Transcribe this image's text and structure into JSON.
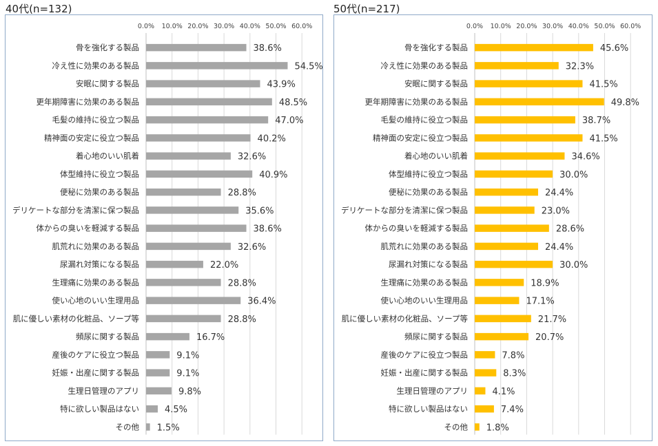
{
  "chart_data": [
    {
      "type": "bar",
      "orientation": "horizontal",
      "title": "40代(n=132)",
      "bar_color": "#a6a6a6",
      "xlim": [
        0,
        60
      ],
      "tick_labels": [
        "0.0%",
        "10.0%",
        "20.0%",
        "30.0%",
        "40.0%",
        "50.0%",
        "60.0%"
      ],
      "categories": [
        "骨を強化する製品",
        "冷え性に効果のある製品",
        "安眠に関する製品",
        "更年期障害に効果のある製品",
        "毛髪の維持に役立つ製品",
        "精神面の安定に役立つ製品",
        "着心地のいい肌着",
        "体型維持に役立つ製品",
        "便秘に効果のある製品",
        "デリケートな部分を清潔に保つ製品",
        "体からの臭いを軽減する製品",
        "肌荒れに効果のある製品",
        "尿漏れ対策になる製品",
        "生理痛に効果のある製品",
        "使い心地のいい生理用品",
        "肌に優しい素材の化粧品、ソープ等",
        "頻尿に関する製品",
        "産後のケアに役立つ製品",
        "妊娠・出産に関する製品",
        "生理日管理のアプリ",
        "特に欲しい製品はない",
        "その他"
      ],
      "values": [
        38.6,
        54.5,
        43.9,
        48.5,
        47.0,
        40.2,
        32.6,
        40.9,
        28.8,
        35.6,
        38.6,
        32.6,
        22.0,
        28.8,
        36.4,
        28.8,
        16.7,
        9.1,
        9.1,
        9.8,
        4.5,
        1.5
      ],
      "value_labels": [
        "38.6%",
        "54.5%",
        "43.9%",
        "48.5%",
        "47.0%",
        "40.2%",
        "32.6%",
        "40.9%",
        "28.8%",
        "35.6%",
        "38.6%",
        "32.6%",
        "22.0%",
        "28.8%",
        "36.4%",
        "28.8%",
        "16.7%",
        "9.1%",
        "9.1%",
        "9.8%",
        "4.5%",
        "1.5%"
      ]
    },
    {
      "type": "bar",
      "orientation": "horizontal",
      "title": "50代(n=217)",
      "bar_color": "#ffc000",
      "xlim": [
        0,
        60
      ],
      "tick_labels": [
        "0.0%",
        "10.0%",
        "20.0%",
        "30.0%",
        "40.0%",
        "50.0%",
        "60.0%"
      ],
      "categories": [
        "骨を強化する製品",
        "冷え性に効果のある製品",
        "安眠に関する製品",
        "更年期障害に効果のある製品",
        "毛髪の維持に役立つ製品",
        "精神面の安定に役立つ製品",
        "着心地のいい肌着",
        "体型維持に役立つ製品",
        "便秘に効果のある製品",
        "デリケートな部分を清潔に保つ製品",
        "体からの臭いを軽減する製品",
        "肌荒れに効果のある製品",
        "尿漏れ対策になる製品",
        "生理痛に効果のある製品",
        "使い心地のいい生理用品",
        "肌に優しい素材の化粧品、ソープ等",
        "頻尿に関する製品",
        "産後のケアに役立つ製品",
        "妊娠・出産に関する製品",
        "生理日管理のアプリ",
        "特に欲しい製品はない",
        "その他"
      ],
      "values": [
        45.6,
        32.3,
        41.5,
        49.8,
        38.7,
        41.5,
        34.6,
        30.0,
        24.4,
        23.0,
        28.6,
        24.4,
        30.0,
        18.9,
        17.1,
        21.7,
        20.7,
        7.8,
        8.3,
        4.1,
        7.4,
        1.8
      ],
      "value_labels": [
        "45.6%",
        "32.3%",
        "41.5%",
        "49.8%",
        "38.7%",
        "41.5%",
        "34.6%",
        "30.0%",
        "24.4%",
        "23.0%",
        "28.6%",
        "24.4%",
        "30.0%",
        "18.9%",
        "17.1%",
        "21.7%",
        "20.7%",
        "7.8%",
        "8.3%",
        "4.1%",
        "7.4%",
        "1.8%"
      ]
    }
  ]
}
